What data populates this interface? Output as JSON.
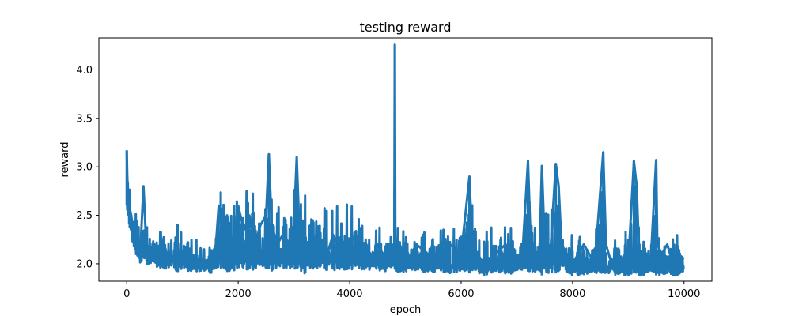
{
  "chart_data": {
    "type": "line",
    "title": "testing reward",
    "xlabel": "epoch",
    "ylabel": "reward",
    "xlim": [
      -500,
      10500
    ],
    "ylim": [
      1.82,
      4.33
    ],
    "xticks": [
      0,
      2000,
      4000,
      6000,
      8000,
      10000
    ],
    "yticks": [
      2.0,
      2.5,
      3.0,
      3.5,
      4.0
    ],
    "xtick_labels": [
      "0",
      "2000",
      "4000",
      "6000",
      "8000",
      "10000"
    ],
    "ytick_labels": [
      "2.0",
      "2.5",
      "3.0",
      "3.5",
      "4.0"
    ],
    "grid": false,
    "series": [
      {
        "color": "#1f77b4",
        "line_width": 3,
        "x": [
          0,
          10,
          20,
          40,
          60,
          80,
          100,
          150,
          200,
          250,
          300,
          350,
          400,
          450,
          500,
          600,
          700,
          800,
          900,
          1000,
          1100,
          1200,
          1300,
          1400,
          1500,
          1600,
          1650,
          1700,
          1800,
          1900,
          2000,
          2100,
          2200,
          2300,
          2400,
          2500,
          2550,
          2600,
          2700,
          2800,
          2900,
          3000,
          3050,
          3100,
          3200,
          3300,
          3400,
          3500,
          3600,
          3700,
          3800,
          3900,
          4000,
          4100,
          4200,
          4300,
          4400,
          4500,
          4600,
          4700,
          4800,
          4810,
          4820,
          4900,
          5000,
          5200,
          5400,
          5600,
          5800,
          6000,
          6150,
          6200,
          6300,
          6400,
          6600,
          6800,
          7000,
          7100,
          7200,
          7250,
          7300,
          7400,
          7450,
          7500,
          7600,
          7700,
          7750,
          7800,
          7900,
          8000,
          8200,
          8400,
          8550,
          8600,
          8700,
          8800,
          9000,
          9100,
          9150,
          9200,
          9300,
          9400,
          9500,
          9520,
          9600,
          9700,
          9800,
          9900,
          10000
        ],
        "values": [
          3.17,
          2.9,
          2.75,
          2.6,
          2.55,
          2.5,
          2.4,
          2.3,
          2.25,
          2.2,
          2.8,
          2.2,
          2.1,
          2.15,
          2.1,
          2.05,
          2.1,
          2.05,
          2.1,
          2.05,
          2.1,
          2.0,
          2.05,
          2.0,
          2.05,
          2.2,
          2.6,
          2.3,
          2.5,
          2.2,
          2.6,
          2.35,
          2.5,
          2.2,
          2.4,
          2.5,
          3.13,
          2.4,
          2.2,
          2.3,
          2.1,
          2.4,
          3.1,
          2.3,
          2.2,
          2.1,
          2.3,
          2.2,
          2.1,
          2.3,
          2.2,
          2.1,
          2.2,
          2.3,
          2.1,
          2.2,
          2.0,
          2.2,
          2.1,
          2.0,
          2.1,
          4.26,
          2.1,
          2.2,
          2.0,
          2.2,
          2.1,
          2.0,
          2.2,
          2.1,
          2.9,
          2.2,
          2.1,
          2.0,
          2.1,
          2.2,
          2.0,
          2.1,
          3.06,
          2.2,
          2.1,
          2.0,
          3.01,
          2.2,
          2.1,
          3.03,
          2.8,
          2.2,
          2.1,
          2.0,
          2.2,
          2.0,
          3.15,
          2.2,
          2.0,
          2.1,
          2.0,
          3.06,
          2.8,
          2.0,
          2.1,
          2.0,
          3.07,
          2.2,
          2.1,
          2.2,
          2.0,
          2.1,
          2.05
        ],
        "envelope_low": [
          2.6,
          2.55,
          2.5,
          2.4,
          2.35,
          2.3,
          2.2,
          2.1,
          2.05,
          2.0,
          2.05,
          2.0,
          1.98,
          2.0,
          1.98,
          1.95,
          1.95,
          1.98,
          1.92,
          1.95,
          1.92,
          1.92,
          1.9,
          1.92,
          1.9,
          1.95,
          1.95,
          1.95,
          1.92,
          1.92,
          1.95,
          1.95,
          1.92,
          1.95,
          1.95,
          1.95,
          1.95,
          1.92,
          1.95,
          1.92,
          1.95,
          1.95,
          1.95,
          1.92,
          1.9,
          1.92,
          1.92,
          1.95,
          1.92,
          1.92,
          1.95,
          1.9,
          1.92,
          1.95,
          1.92,
          1.92,
          1.92,
          1.95,
          1.9,
          1.95,
          1.95,
          1.95,
          1.92,
          1.9,
          1.92,
          1.92,
          1.9,
          1.92,
          1.9,
          1.92,
          1.9,
          1.92,
          1.9,
          1.88,
          1.92,
          1.9,
          1.9,
          1.92,
          1.92,
          1.9,
          1.92,
          1.9,
          1.88,
          1.92,
          1.9,
          1.9,
          1.92,
          1.92,
          1.9,
          1.88,
          1.88,
          1.9,
          1.9,
          1.88,
          1.9,
          1.88,
          1.88,
          1.9,
          1.88,
          1.88,
          1.88,
          1.9,
          1.88,
          1.88,
          1.88,
          1.9,
          1.88,
          1.88,
          1.9
        ],
        "envelope_high": [
          3.17,
          3.1,
          3.0,
          2.9,
          2.85,
          2.8,
          2.7,
          2.65,
          2.62,
          2.6,
          2.8,
          2.55,
          2.5,
          2.5,
          2.48,
          2.5,
          2.48,
          2.45,
          2.45,
          2.45,
          2.45,
          2.4,
          2.42,
          2.4,
          2.4,
          2.4,
          2.95,
          2.85,
          2.9,
          2.8,
          3.0,
          2.85,
          2.9,
          2.85,
          2.75,
          2.9,
          3.13,
          3.0,
          2.9,
          2.9,
          2.8,
          2.9,
          3.1,
          2.9,
          2.85,
          2.9,
          2.85,
          2.8,
          2.85,
          2.8,
          2.75,
          2.85,
          2.9,
          2.8,
          2.8,
          2.75,
          2.6,
          2.5,
          2.5,
          2.5,
          2.5,
          4.26,
          2.55,
          2.5,
          2.5,
          2.48,
          2.45,
          2.48,
          2.45,
          2.45,
          2.95,
          2.9,
          2.5,
          2.45,
          2.42,
          2.42,
          2.42,
          2.45,
          3.06,
          2.9,
          2.5,
          2.5,
          3.01,
          2.95,
          2.7,
          3.03,
          2.95,
          2.9,
          2.45,
          2.45,
          2.42,
          2.42,
          3.15,
          2.42,
          2.42,
          2.4,
          2.42,
          3.06,
          3.0,
          2.4,
          2.42,
          2.38,
          3.07,
          2.4,
          2.38,
          2.38,
          2.35,
          2.35,
          2.35
        ]
      }
    ]
  }
}
